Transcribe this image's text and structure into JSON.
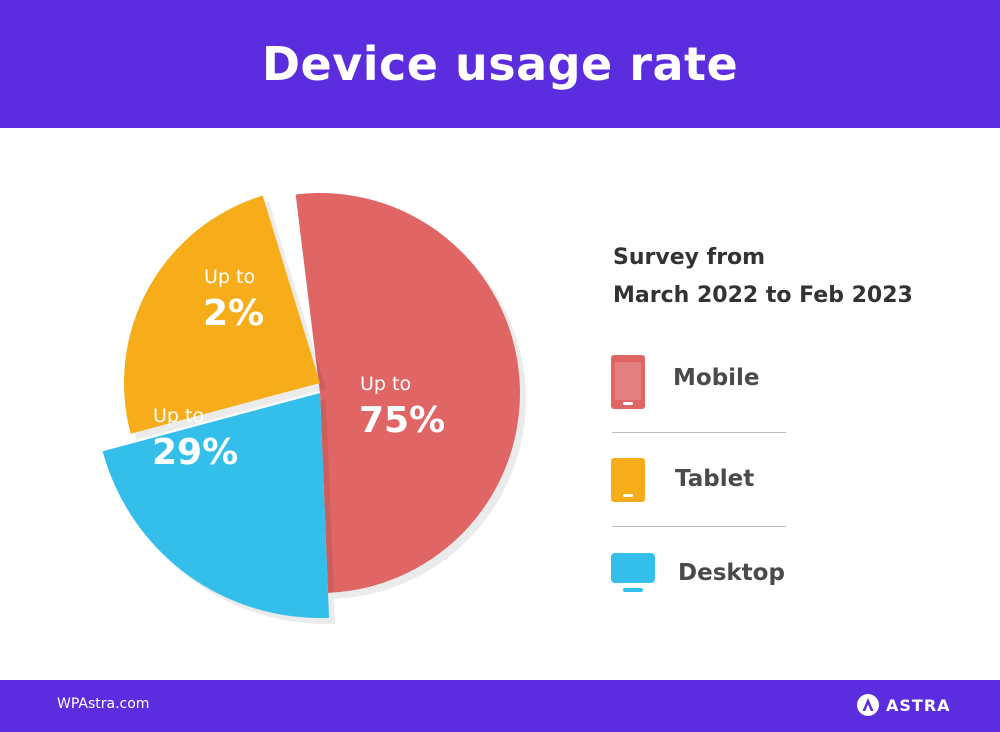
{
  "header": {
    "title": "Device usage rate"
  },
  "survey": {
    "line1": "Survey from",
    "line2": "March 2022 to Feb 2023"
  },
  "legend": [
    {
      "label": "Mobile",
      "color": "#e06565",
      "icon": "mobile-phone-icon"
    },
    {
      "label": "Tablet",
      "color": "#f6ad19",
      "icon": "tablet-icon"
    },
    {
      "label": "Desktop",
      "color": "#33bfea",
      "icon": "desktop-monitor-icon"
    }
  ],
  "footer": {
    "site": "WPAstra.com",
    "brand": "ASTRA"
  },
  "chart_data": {
    "type": "pie",
    "title": "Device usage rate",
    "slices": [
      {
        "label": "Mobile",
        "value": 75,
        "prefix": "Up to",
        "display": "75%",
        "color": "#e06565"
      },
      {
        "label": "Desktop",
        "value": 29,
        "prefix": "Up to",
        "display": "29%",
        "color": "#33bfea"
      },
      {
        "label": "Tablet",
        "value": 2,
        "prefix": "Up to",
        "display": "2%",
        "color": "#f6ad19"
      }
    ],
    "legend_position": "right"
  }
}
